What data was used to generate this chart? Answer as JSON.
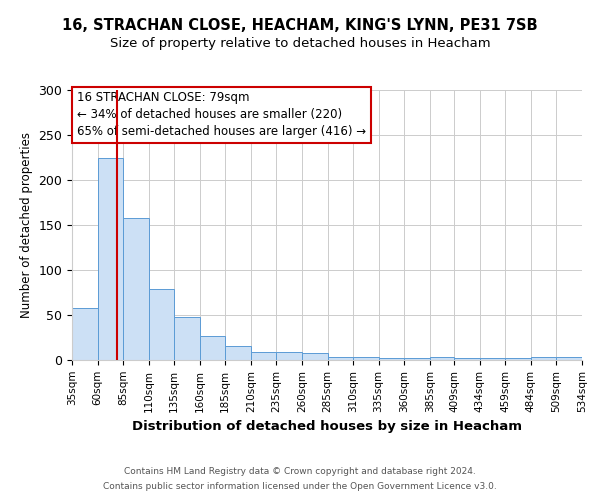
{
  "title1": "16, STRACHAN CLOSE, HEACHAM, KING'S LYNN, PE31 7SB",
  "title2": "Size of property relative to detached houses in Heacham",
  "xlabel": "Distribution of detached houses by size in Heacham",
  "ylabel": "Number of detached properties",
  "bar_edges": [
    35,
    60,
    85,
    110,
    135,
    160,
    185,
    210,
    235,
    260,
    285,
    310,
    335,
    360,
    385,
    409,
    434,
    459,
    484,
    509,
    534
  ],
  "bar_heights": [
    58,
    225,
    158,
    79,
    48,
    27,
    16,
    9,
    9,
    8,
    3,
    3,
    2,
    2,
    3,
    2,
    2,
    2,
    3,
    3
  ],
  "bar_color": "#cce0f5",
  "bar_edgecolor": "#5b9bd5",
  "property_size": 79,
  "vline_color": "#cc0000",
  "annotation_line1": "16 STRACHAN CLOSE: 79sqm",
  "annotation_line2": "← 34% of detached houses are smaller (220)",
  "annotation_line3": "65% of semi-detached houses are larger (416) →",
  "annotation_box_edgecolor": "#cc0000",
  "ylim": [
    0,
    300
  ],
  "yticks": [
    0,
    50,
    100,
    150,
    200,
    250,
    300
  ],
  "tick_labels": [
    "35sqm",
    "60sqm",
    "85sqm",
    "110sqm",
    "135sqm",
    "160sqm",
    "185sqm",
    "210sqm",
    "235sqm",
    "260sqm",
    "285sqm",
    "310sqm",
    "335sqm",
    "360sqm",
    "385sqm",
    "409sqm",
    "434sqm",
    "459sqm",
    "484sqm",
    "509sqm",
    "534sqm"
  ],
  "footer1": "Contains HM Land Registry data © Crown copyright and database right 2024.",
  "footer2": "Contains public sector information licensed under the Open Government Licence v3.0.",
  "bg_color": "#ffffff",
  "grid_color": "#cccccc",
  "title1_fontsize": 10.5,
  "title2_fontsize": 9.5,
  "ylabel_fontsize": 8.5,
  "xlabel_fontsize": 9.5,
  "ytick_fontsize": 9,
  "xtick_fontsize": 7.5,
  "annotation_fontsize": 8.5,
  "footer_fontsize": 6.5
}
